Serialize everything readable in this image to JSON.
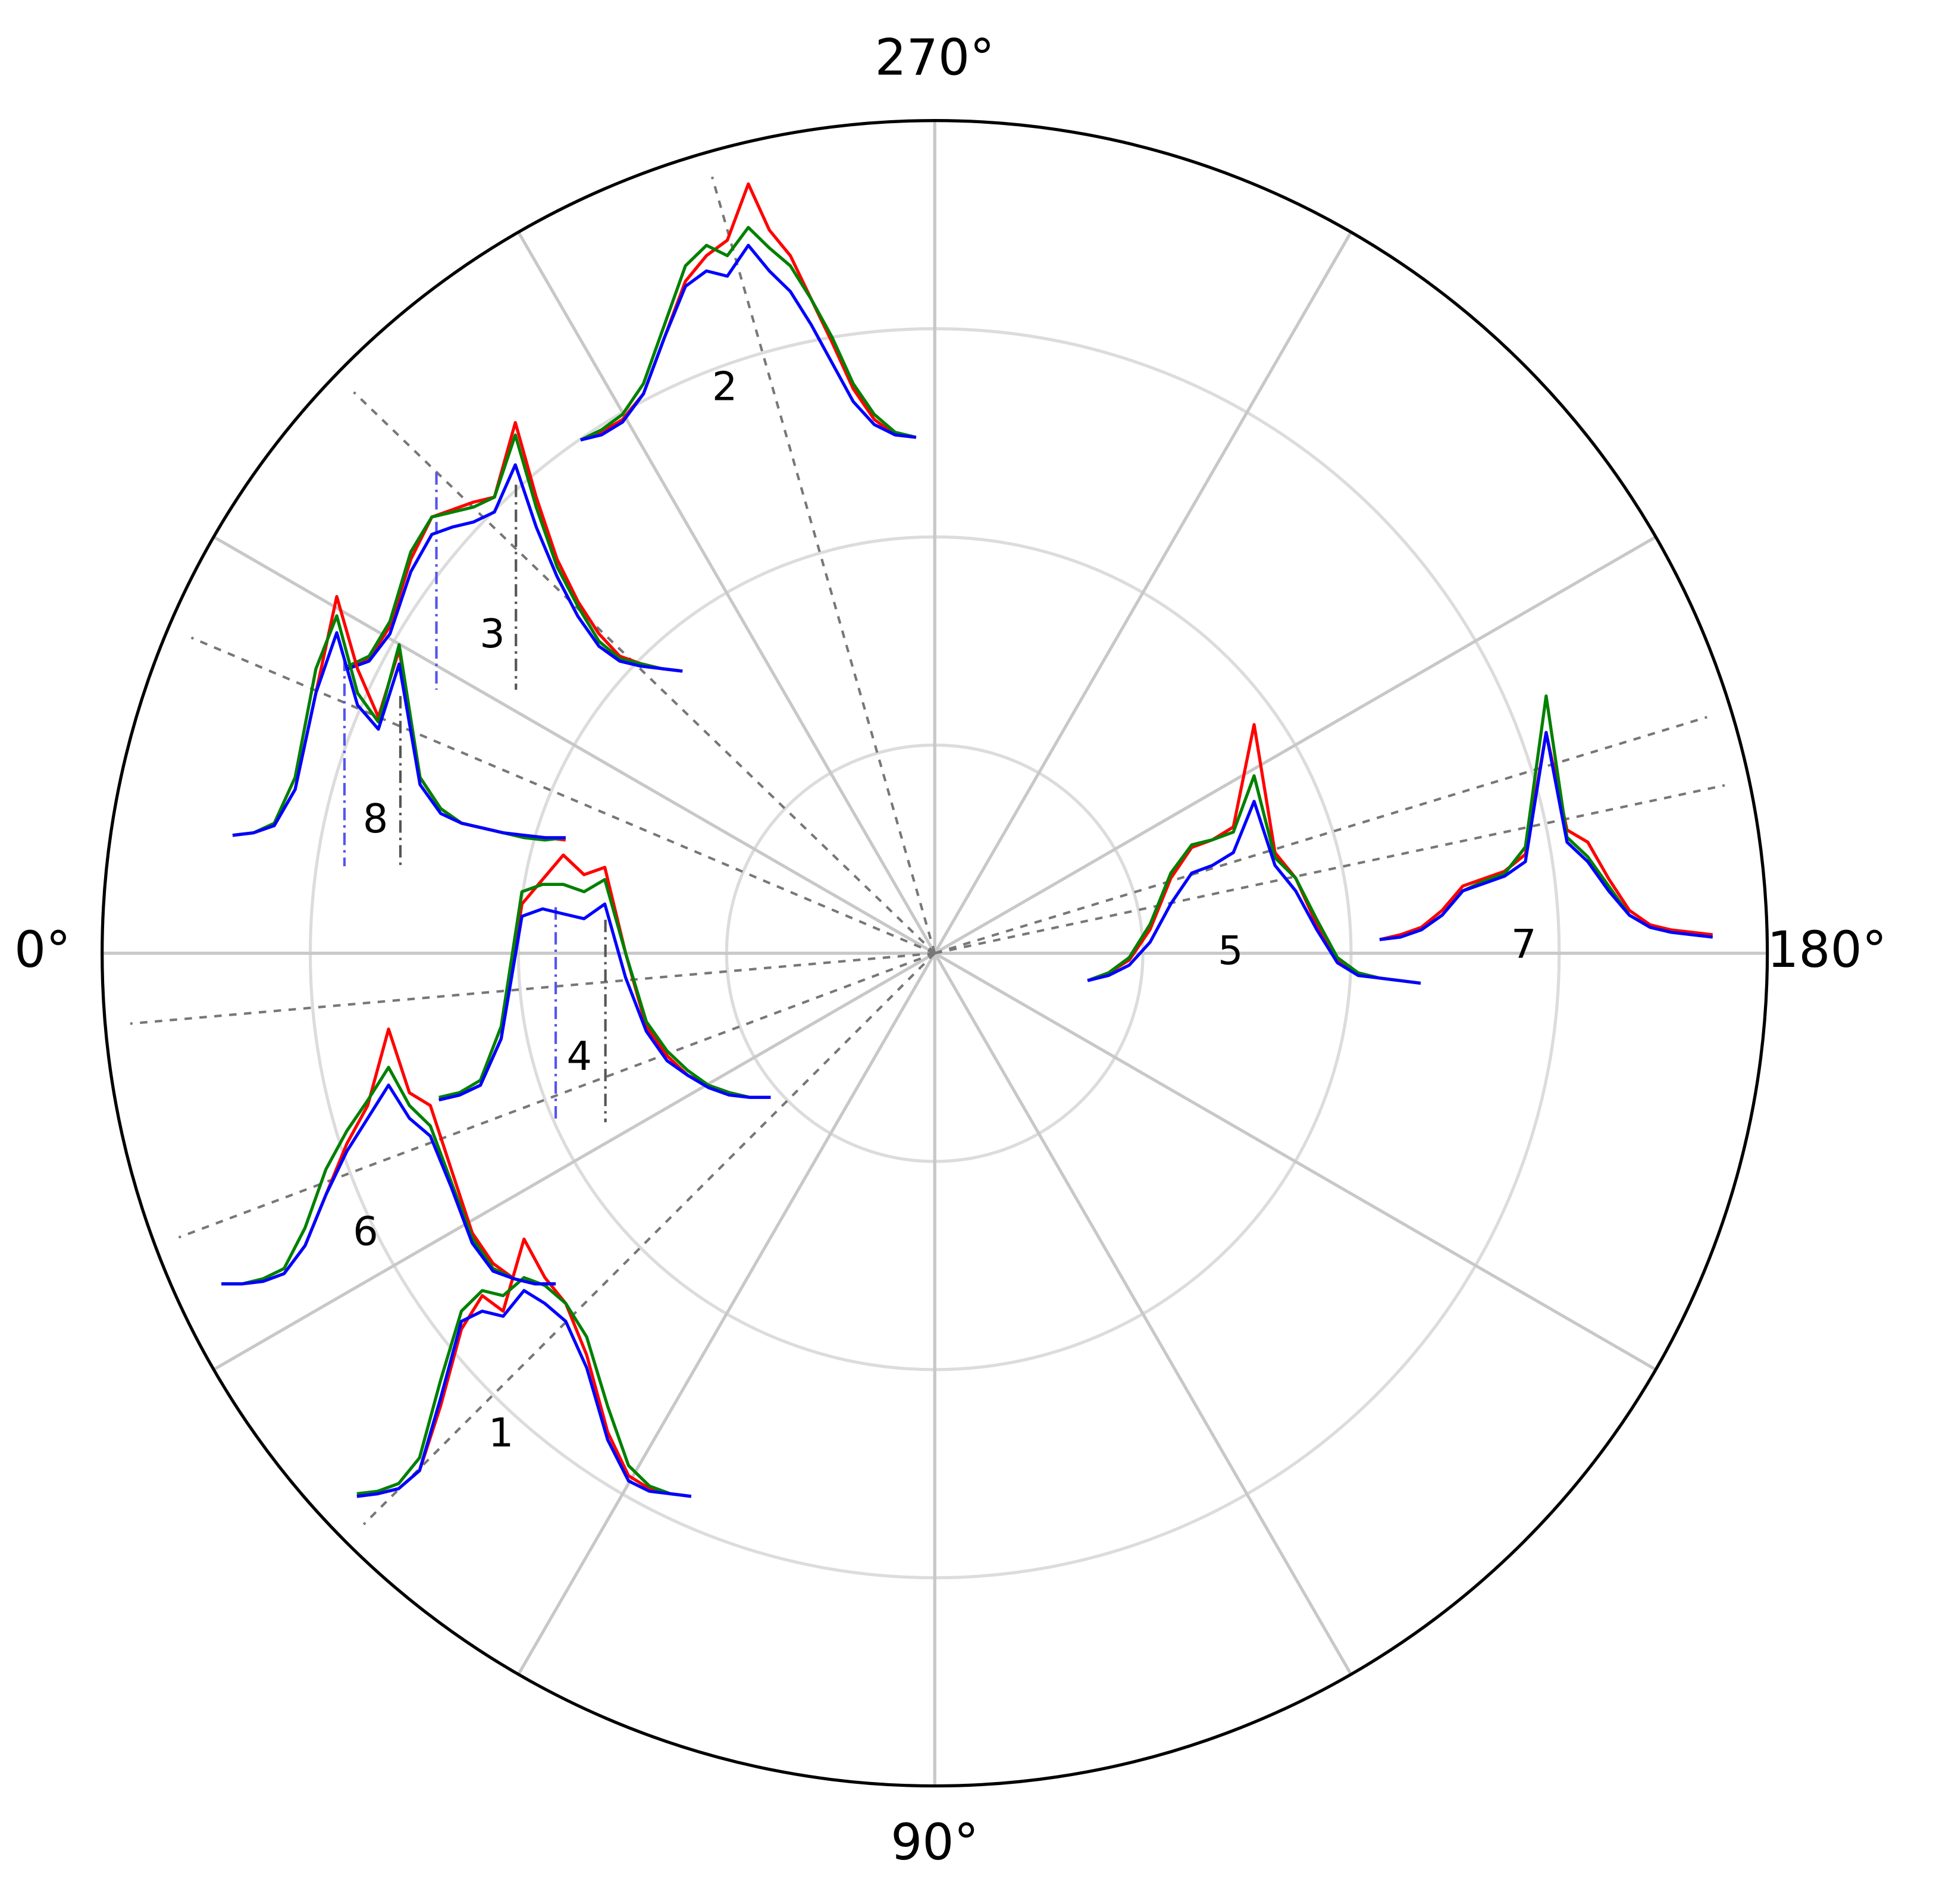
{
  "chart_data": {
    "type": "polar",
    "rlim": [
      0,
      1
    ],
    "rticks": [
      0.25,
      0.5,
      0.75
    ],
    "thetaticks": [
      {
        "value": 0,
        "label": "0°"
      },
      {
        "value": 90,
        "label": "90°"
      },
      {
        "value": 180,
        "label": "180°"
      },
      {
        "value": 270,
        "label": "270°"
      }
    ],
    "thetagrid": [
      0,
      30,
      60,
      90,
      120,
      150,
      180,
      210,
      240,
      270,
      300,
      330
    ],
    "grid": true,
    "insets": [
      {
        "label": "1",
        "angle": 45,
        "series": [
          {
            "color": "#ff0000",
            "values": [
              0,
              1,
              3,
              10,
              35,
              65,
              78,
              72,
              100,
              85,
              75,
              55,
              25,
              8,
              3,
              1,
              0
            ]
          },
          {
            "color": "#008000",
            "values": [
              1,
              2,
              5,
              15,
              45,
              72,
              80,
              78,
              85,
              82,
              75,
              62,
              35,
              12,
              4,
              1,
              0
            ]
          },
          {
            "color": "#0000ff",
            "values": [
              0,
              1,
              3,
              10,
              38,
              68,
              72,
              70,
              80,
              75,
              68,
              50,
              22,
              6,
              2,
              1,
              0
            ]
          }
        ]
      },
      {
        "label": "2",
        "angle": 286,
        "series": [
          {
            "color": "#ff0000",
            "values": [
              0,
              3,
              8,
              18,
              40,
              62,
              72,
              78,
              100,
              82,
              72,
              55,
              38,
              20,
              8,
              2,
              1
            ]
          },
          {
            "color": "#008000",
            "values": [
              0,
              4,
              10,
              22,
              45,
              68,
              76,
              72,
              83,
              75,
              68,
              55,
              40,
              22,
              10,
              3,
              1
            ]
          },
          {
            "color": "#0000ff",
            "values": [
              0,
              2,
              7,
              18,
              40,
              60,
              66,
              64,
              76,
              66,
              58,
              45,
              30,
              15,
              6,
              2,
              1
            ]
          }
        ]
      },
      {
        "label": "3",
        "angle": 316,
        "series": [
          {
            "color": "#ff0000",
            "values": [
              2,
              5,
              18,
              45,
              62,
              65,
              68,
              70,
              100,
              70,
              45,
              28,
              15,
              6,
              3,
              1,
              0
            ]
          },
          {
            "color": "#008000",
            "values": [
              2,
              6,
              20,
              48,
              62,
              64,
              66,
              70,
              95,
              66,
              42,
              26,
              12,
              5,
              3,
              1,
              0
            ]
          },
          {
            "color": "#0000ff",
            "values": [
              1,
              4,
              15,
              40,
              55,
              58,
              60,
              64,
              83,
              58,
              38,
              22,
              10,
              4,
              2,
              1,
              0
            ]
          }
        ]
      },
      {
        "label": "4",
        "angle": 5,
        "series": [
          {
            "color": "#ff0000",
            "values": [
              0,
              2,
              6,
              25,
              80,
              90,
              100,
              92,
              95,
              60,
              30,
              18,
              10,
              6,
              3,
              1,
              1
            ]
          },
          {
            "color": "#008000",
            "values": [
              1,
              3,
              8,
              30,
              85,
              88,
              88,
              85,
              90,
              60,
              32,
              20,
              12,
              6,
              3,
              1,
              1
            ]
          },
          {
            "color": "#0000ff",
            "values": [
              0,
              2,
              6,
              25,
              75,
              78,
              76,
              74,
              80,
              50,
              28,
              16,
              10,
              5,
              2,
              1,
              1
            ]
          }
        ]
      },
      {
        "label": "5",
        "angle": 192,
        "series": [
          {
            "color": "#ff0000",
            "values": [
              0,
              3,
              8,
              20,
              40,
              52,
              55,
              60,
              100,
              50,
              40,
              22,
              8,
              3,
              1,
              0,
              -1
            ]
          },
          {
            "color": "#008000",
            "values": [
              0,
              3,
              9,
              22,
              42,
              53,
              55,
              58,
              80,
              48,
              40,
              24,
              9,
              3,
              1,
              0,
              -1
            ]
          },
          {
            "color": "#0000ff",
            "values": [
              0,
              2,
              6,
              15,
              30,
              42,
              45,
              50,
              70,
              45,
              35,
              20,
              7,
              2,
              1,
              0,
              -1
            ]
          }
        ]
      },
      {
        "label": "6",
        "angle": 20.6,
        "series": [
          {
            "color": "#ff0000",
            "values": [
              0,
              0,
              1,
              4,
              15,
              35,
              55,
              70,
              100,
              75,
              70,
              45,
              20,
              8,
              2,
              0,
              0
            ]
          },
          {
            "color": "#008000",
            "values": [
              0,
              0,
              2,
              6,
              22,
              45,
              60,
              72,
              85,
              70,
              62,
              40,
              18,
              6,
              2,
              0,
              0
            ]
          },
          {
            "color": "#0000ff",
            "values": [
              0,
              0,
              1,
              4,
              15,
              35,
              52,
              65,
              78,
              65,
              58,
              38,
              16,
              5,
              2,
              0,
              0
            ]
          }
        ]
      },
      {
        "label": "7",
        "angle": 197,
        "series": [
          {
            "color": "#ff0000",
            "values": [
              0,
              2,
              5,
              12,
              22,
              25,
              28,
              35,
              85,
              45,
              40,
              25,
              12,
              6,
              4,
              3,
              2
            ]
          },
          {
            "color": "#008000",
            "values": [
              0,
              1,
              4,
              10,
              20,
              24,
              27,
              38,
              100,
              42,
              34,
              22,
              10,
              5,
              3,
              2,
              1
            ]
          },
          {
            "color": "#0000ff",
            "values": [
              0,
              1,
              4,
              10,
              20,
              23,
              26,
              32,
              85,
              40,
              32,
              20,
              10,
              5,
              3,
              2,
              1
            ]
          }
        ]
      },
      {
        "label": "8",
        "angle": 337,
        "series": [
          {
            "color": "#ff0000",
            "values": [
              1,
              2,
              5,
              20,
              60,
              100,
              70,
              50,
              78,
              25,
              12,
              6,
              4,
              2,
              1,
              0,
              -1
            ]
          },
          {
            "color": "#008000",
            "values": [
              1,
              2,
              6,
              25,
              70,
              92,
              60,
              48,
              80,
              25,
              12,
              6,
              4,
              2,
              0,
              -1,
              0
            ]
          },
          {
            "color": "#0000ff",
            "values": [
              1,
              2,
              5,
              20,
              60,
              85,
              55,
              45,
              72,
              22,
              10,
              6,
              4,
              2,
              1,
              0,
              0
            ]
          }
        ]
      }
    ]
  }
}
